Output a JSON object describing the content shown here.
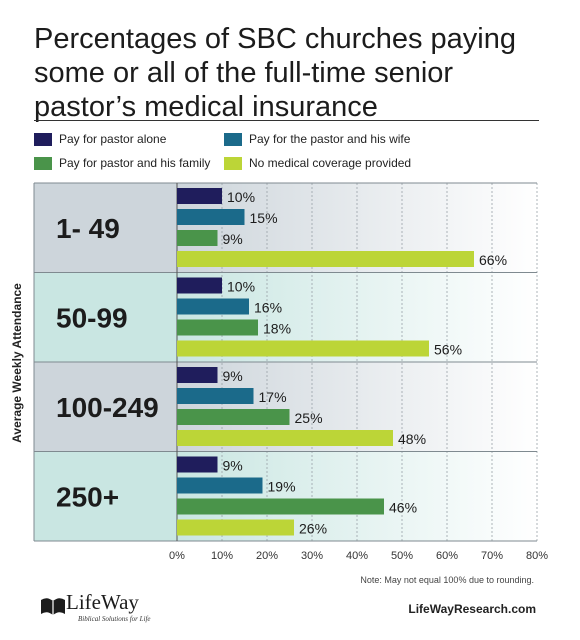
{
  "title": "Percentages of SBC churches paying some or all of the full-time senior pastor’s medical insurance",
  "note": "Note: May not equal 100% due to rounding.",
  "website": "LifeWayResearch.com",
  "logo": {
    "word": "LifeWay",
    "tagline": "Biblical Solutions for Life"
  },
  "colors": {
    "pastor_alone": "#1f1d5c",
    "pastor_wife": "#1b6a8a",
    "pastor_family": "#4a944a",
    "no_coverage": "#bcd537",
    "group_bg_1": "#cdd5db",
    "group_bg_2": "#c9e6e2"
  },
  "chart_data": {
    "type": "bar",
    "orientation": "horizontal",
    "title": "Percentages of SBC churches paying some or all of the full-time senior pastor’s medical insurance",
    "ylabel": "Average Weekly Attendance",
    "xlabel": "",
    "categories": [
      "1- 49",
      "50-99",
      "100-249",
      "250+"
    ],
    "series": [
      {
        "name": "Pay for pastor alone",
        "values": [
          10,
          10,
          9,
          9
        ],
        "labels": [
          "10%",
          "10%",
          "9%",
          "9%"
        ]
      },
      {
        "name": "Pay for the pastor and his wife",
        "values": [
          15,
          16,
          17,
          19
        ],
        "labels": [
          "15%",
          "16%",
          "17%",
          "19%"
        ]
      },
      {
        "name": "Pay for pastor and his family",
        "values": [
          9,
          18,
          25,
          46
        ],
        "labels": [
          "9%",
          "18%",
          "25%",
          "46%"
        ]
      },
      {
        "name": "No medical coverage provided",
        "values": [
          66,
          56,
          48,
          26
        ],
        "labels": [
          "66%",
          "56%",
          "48%",
          "26%"
        ]
      }
    ],
    "xlim": [
      0,
      80
    ],
    "ticks": [
      0,
      10,
      20,
      30,
      40,
      50,
      60,
      70,
      80
    ],
    "tick_labels": [
      "0%",
      "10%",
      "20%",
      "30%",
      "40%",
      "50%",
      "60%",
      "70%",
      "80%"
    ],
    "grid": true,
    "legend_placement": "top"
  }
}
